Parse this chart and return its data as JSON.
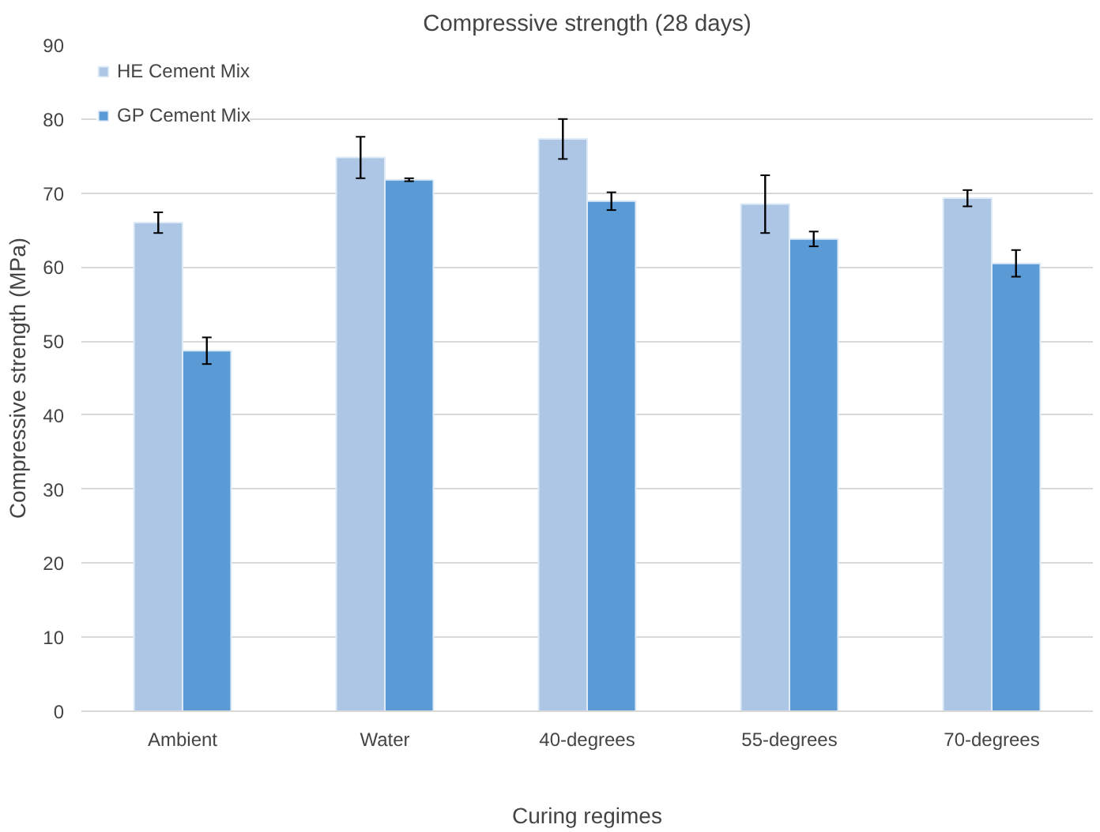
{
  "chart_data": {
    "type": "bar",
    "title": "Compressive strength (28 days)",
    "xlabel": "Curing regimes",
    "ylabel": "Compressive strength (MPa)",
    "categories": [
      "Ambient",
      "Water",
      "40-degrees",
      "55-degrees",
      "70-degrees"
    ],
    "series": [
      {
        "name": "HE Cement Mix",
        "color": "#adc6e5",
        "values": [
          66,
          74.8,
          77.3,
          68.5,
          69.3
        ],
        "errors": [
          1.4,
          2.8,
          2.7,
          3.9,
          1.1
        ]
      },
      {
        "name": "GP Cement Mix",
        "color": "#5b9bd5",
        "values": [
          48.7,
          71.8,
          68.9,
          63.8,
          60.5
        ],
        "errors": [
          1.8,
          0.2,
          1.2,
          1.0,
          1.8
        ]
      }
    ],
    "ylim": [
      0,
      90
    ],
    "yticks": [
      0,
      10,
      20,
      30,
      40,
      50,
      60,
      70,
      80,
      90
    ],
    "grid": "y",
    "legend": "top left"
  }
}
